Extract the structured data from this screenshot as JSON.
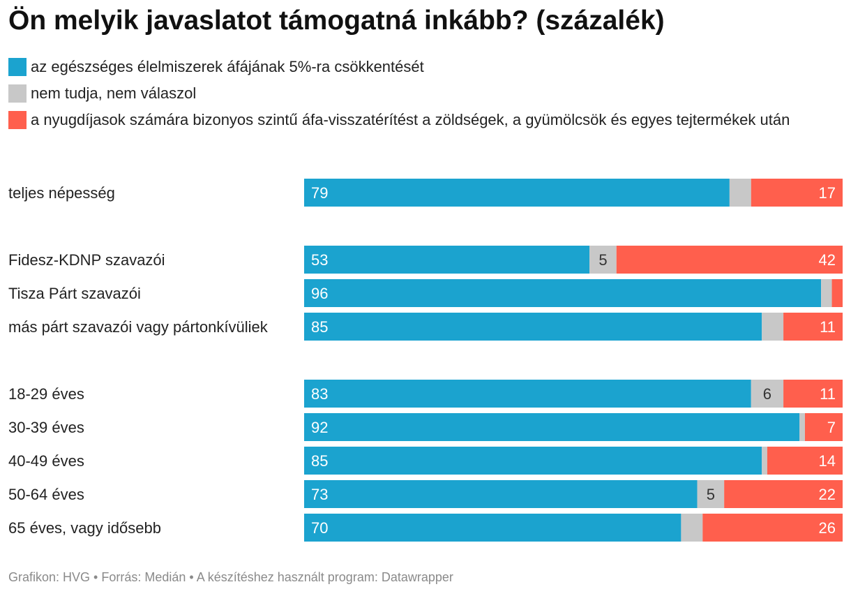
{
  "title": "Ön melyik javaslatot támogatná inkább? (százalék)",
  "legend": [
    {
      "label": "az egészséges élelmiszerek áfájának 5%-ra csökkentését",
      "color": "#1ba3cf"
    },
    {
      "label": "nem tudja, nem válaszol",
      "color": "#c8c8c8"
    },
    {
      "label": "a nyugdíjasok számára bizonyos szintű áfa-visszatérítést a zöldségek, a gyümölcsök és egyes tejtermékek után",
      "color": "#ff5f4d"
    }
  ],
  "footer": "Grafikon: HVG • Forrás: Medián • A készítéshez használt program: Datawrapper",
  "chart_data": {
    "type": "bar",
    "orientation": "horizontal",
    "stacked": true,
    "xlim": [
      0,
      100
    ],
    "unit": "%",
    "categories": [
      "teljes népesség",
      "Fidesz-KDNP szavazói",
      "Tisza Párt szavazói",
      "más párt szavazói vagy pártonkívüliek",
      "18-29 éves",
      "30-39 éves",
      "40-49 éves",
      "50-64 éves",
      "65 éves, vagy idősebb"
    ],
    "groups": [
      [
        0
      ],
      [
        1,
        2,
        3
      ],
      [
        4,
        5,
        6,
        7,
        8
      ]
    ],
    "series": [
      {
        "name": "az egészséges élelmiszerek áfájának 5%-ra csökkentését",
        "color": "#1ba3cf",
        "label_color": "#ffffff",
        "values": [
          79,
          53,
          96,
          85,
          83,
          92,
          85,
          73,
          70
        ],
        "labels": [
          "79",
          "53",
          "96",
          "85",
          "83",
          "92",
          "85",
          "73",
          "70"
        ]
      },
      {
        "name": "nem tudja, nem válaszol",
        "color": "#c8c8c8",
        "label_color": "#333333",
        "values": [
          4,
          5,
          2,
          4,
          6,
          1,
          1,
          5,
          4
        ],
        "labels": [
          "",
          "5",
          "",
          "",
          "6",
          "",
          "",
          "5",
          ""
        ]
      },
      {
        "name": "a nyugdíjasok számára bizonyos szintű áfa-visszatérítést a zöldségek, a gyümölcsök és egyes tejtermékek után",
        "color": "#ff5f4d",
        "label_color": "#ffffff",
        "values": [
          17,
          42,
          2,
          11,
          11,
          7,
          14,
          22,
          26
        ],
        "labels": [
          "17",
          "42",
          "",
          "11",
          "11",
          "7",
          "14",
          "22",
          "26"
        ]
      }
    ]
  }
}
